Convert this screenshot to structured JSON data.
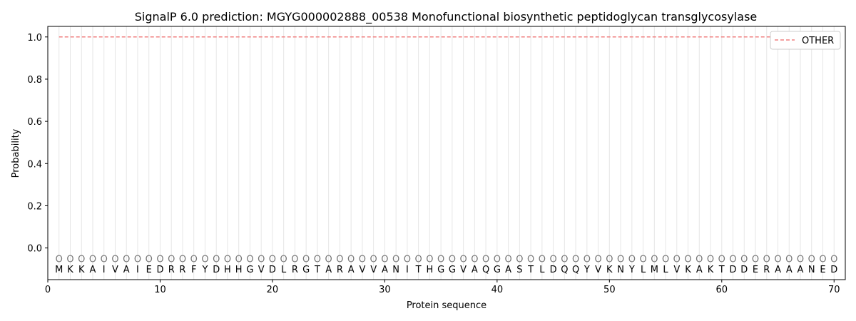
{
  "chart_data": {
    "type": "line",
    "title": "SignalP 6.0 prediction: MGYG000002888_00538 Monofunctional biosynthetic peptidoglycan transglycosylase",
    "xlabel": "Protein sequence",
    "ylabel": "Probability",
    "xlim": [
      0,
      71
    ],
    "ylim": [
      -0.15,
      1.05
    ],
    "xticks": [
      0,
      10,
      20,
      30,
      40,
      50,
      60,
      70
    ],
    "yticks": [
      0.0,
      0.2,
      0.4,
      0.6,
      0.8,
      1.0
    ],
    "sequence": "MKKAIVAIEDRRFYDHHGVDLRGTARAVVANITHGGVAQGASTLDQQYVKNYLMLVKAKTDDERAAANED",
    "predicted_labels": "OOOOOOOOOOOOOOOOOOOOOOOOOOOOOOOOOOOOOOOOOOOOOOOOOOOOOOOOOOOOOOOOOOOOOO",
    "series": [
      {
        "name": "OTHER",
        "color": "#f08080",
        "style": "dashed",
        "x_start": 1,
        "x_end": 70,
        "value": 1.0
      }
    ],
    "legend_placement": "top-right",
    "grid": "vertical lines at each residue"
  }
}
